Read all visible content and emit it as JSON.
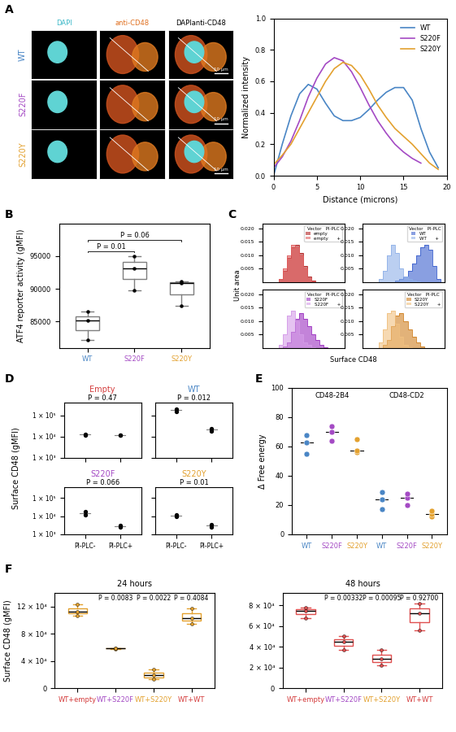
{
  "panel_labels": [
    "A",
    "B",
    "C",
    "D",
    "E",
    "F"
  ],
  "images": {
    "columns": [
      "DAPI",
      "anti-CD48",
      "DAPIanti-CD48"
    ],
    "rows": [
      {
        "name": "WT",
        "color": "#4a86c5"
      },
      {
        "name": "S220F",
        "color": "#a44ac4"
      },
      {
        "name": "S220Y",
        "color": "#e3a12f"
      }
    ],
    "scale_bar": "10 μm"
  },
  "group_labels": {
    "C": {
      "x_label": "Surface CD48",
      "y_label": "Unit area"
    },
    "D": {
      "y_label": "Surface CD48 (gMFI)"
    }
  },
  "chart_data": [
    {
      "type": "line",
      "x": [
        0,
        1,
        2,
        3,
        4,
        5,
        6,
        7,
        8,
        9,
        10,
        11,
        12,
        13,
        14,
        15,
        16,
        17,
        18,
        19
      ],
      "series": [
        {
          "name": "WT",
          "color": "#4a86c5",
          "values": [
            0.0,
            0.2,
            0.38,
            0.52,
            0.58,
            0.55,
            0.46,
            0.38,
            0.35,
            0.35,
            0.37,
            0.42,
            0.48,
            0.53,
            0.56,
            0.56,
            0.48,
            0.3,
            0.15,
            0.05
          ]
        },
        {
          "name": "S220F",
          "color": "#a44ac4",
          "values": [
            0.05,
            0.12,
            0.22,
            0.35,
            0.5,
            0.62,
            0.71,
            0.75,
            0.73,
            0.66,
            0.56,
            0.45,
            0.35,
            0.27,
            0.2,
            0.15,
            0.11,
            0.08,
            null,
            null
          ]
        },
        {
          "name": "S220Y",
          "color": "#e3a12f",
          "values": [
            0.07,
            0.13,
            0.2,
            0.3,
            0.4,
            0.5,
            0.6,
            0.68,
            0.72,
            0.7,
            0.64,
            0.55,
            0.45,
            0.37,
            0.3,
            0.25,
            0.2,
            0.14,
            0.08,
            0.04
          ]
        }
      ],
      "xlim": [
        0,
        20
      ],
      "xticks": [
        0,
        5,
        10,
        15,
        20
      ],
      "ylim": [
        0.0,
        1.0
      ],
      "yticks": [
        0.0,
        0.2,
        0.4,
        0.6,
        0.8,
        1.0
      ],
      "x_label": "Distance (microns)",
      "y_label": "Normalized intensity",
      "legend": "upper right"
    },
    {
      "type": "box",
      "categories": [
        "WT",
        "S220F",
        "S220Y"
      ],
      "colors": [
        "#4a86c5",
        "#a44ac4",
        "#e3a12f"
      ],
      "color": "#7f7f7f",
      "values": [
        [
          82200,
          85100,
          86500
        ],
        [
          89800,
          93100,
          95000
        ],
        [
          87400,
          90900,
          91100
        ]
      ],
      "ylim": [
        81000,
        100000
      ],
      "yticks": [
        85000,
        90000,
        95000
      ],
      "y_label": "ATF4 reporter activity (gMFI)",
      "annotations": [
        {
          "text": "P = 0.01",
          "pair": [
            0,
            1
          ]
        },
        {
          "text": "P = 0.06",
          "pair": [
            0,
            2
          ]
        }
      ]
    },
    {
      "type": "histogram",
      "bins": [
        0,
        1,
        2,
        3,
        4,
        5,
        6,
        7,
        8,
        9,
        10,
        11,
        12,
        13,
        14,
        15,
        16,
        17,
        18,
        19,
        20
      ],
      "legend_columns": [
        "Vector",
        "PI-PLC"
      ],
      "legend": "upper right",
      "series": [
        {
          "name": "empty",
          "treatment": null,
          "color": "#b22222",
          "values": [
            0,
            0,
            0,
            0,
            0.001,
            0.004,
            0.009,
            0.013,
            0.014,
            0.011,
            0.006,
            0.002,
            0.0005,
            0,
            0,
            0,
            0,
            0,
            0,
            0
          ]
        },
        {
          "name": "empty",
          "treatment": "+",
          "color": "#e06060",
          "values": [
            0,
            0,
            0,
            0,
            0.001,
            0.005,
            0.01,
            0.014,
            0.013,
            0.01,
            0.005,
            0.0015,
            0.0003,
            0,
            0,
            0,
            0,
            0,
            0,
            0
          ]
        }
      ],
      "xlim": [
        0,
        20
      ],
      "xticks": [],
      "ylim": [
        0,
        0.022
      ],
      "yticks": [
        {
          "value": 0.005,
          "label": "0.005"
        },
        {
          "value": 0.01,
          "label": "0.010"
        },
        {
          "value": 0.015,
          "label": "0.015"
        },
        {
          "value": 0.02,
          "label": "0.020"
        }
      ],
      "tick_labels": "y"
    },
    {
      "type": "histogram",
      "bins": [
        0,
        1,
        2,
        3,
        4,
        5,
        6,
        7,
        8,
        9,
        10,
        11,
        12,
        13,
        14,
        15,
        16,
        17,
        18,
        19,
        20
      ],
      "legend_columns": [
        "Vector",
        "PI-PLC"
      ],
      "legend": "upper right",
      "series": [
        {
          "name": "WT",
          "treatment": null,
          "color": "#3a5fcd",
          "values": [
            0,
            0,
            0,
            0,
            0,
            0,
            0,
            0,
            0.0005,
            0.001,
            0.002,
            0.004,
            0.007,
            0.01,
            0.013,
            0.014,
            0.012,
            0.006,
            0.001,
            0
          ]
        },
        {
          "name": "WT",
          "treatment": "+",
          "color": "#8fb0e8",
          "values": [
            0,
            0,
            0,
            0,
            0.001,
            0.004,
            0.01,
            0.014,
            0.011,
            0.005,
            0.002,
            0.001,
            0.0005,
            0.0002,
            0,
            0,
            0,
            0,
            0,
            0
          ]
        }
      ],
      "xlim": [
        0,
        20
      ],
      "xticks": [],
      "ylim": [
        0,
        0.022
      ],
      "yticks": [
        {
          "value": 0.005,
          "label": "0.005"
        },
        {
          "value": 0.01,
          "label": "0.010"
        },
        {
          "value": 0.015,
          "label": "0.015"
        },
        {
          "value": 0.02,
          "label": "0.020"
        }
      ],
      "tick_labels": "y"
    },
    {
      "type": "histogram",
      "bins": [
        0,
        1,
        2,
        3,
        4,
        5,
        6,
        7,
        8,
        9,
        10,
        11,
        12,
        13,
        14,
        15,
        16,
        17,
        18,
        19,
        20
      ],
      "legend_columns": [
        "Vector",
        "PI-PLC"
      ],
      "legend": "upper right",
      "series": [
        {
          "name": "S220F",
          "treatment": null,
          "color": "#9b30c0",
          "values": [
            0,
            0,
            0,
            0,
            0,
            0.0005,
            0.002,
            0.006,
            0.011,
            0.013,
            0.011,
            0.008,
            0.005,
            0.003,
            0.001,
            0.0003,
            0,
            0,
            0,
            0
          ]
        },
        {
          "name": "S220F",
          "treatment": "+",
          "color": "#d49be8",
          "values": [
            0,
            0,
            0,
            0,
            0.001,
            0.005,
            0.012,
            0.014,
            0.01,
            0.005,
            0.002,
            0.001,
            0.0003,
            0,
            0,
            0,
            0,
            0,
            0,
            0
          ]
        }
      ],
      "xlim": [
        0,
        20
      ],
      "xticks": [],
      "ylim": [
        0,
        0.022
      ],
      "yticks": [
        {
          "value": 0.005,
          "label": "0.005"
        },
        {
          "value": 0.01,
          "label": "0.010"
        },
        {
          "value": 0.015,
          "label": "0.015"
        },
        {
          "value": 0.02,
          "label": "0.020"
        }
      ],
      "tick_labels": "y"
    },
    {
      "type": "histogram",
      "bins": [
        0,
        1,
        2,
        3,
        4,
        5,
        6,
        7,
        8,
        9,
        10,
        11,
        12,
        13,
        14,
        15,
        16,
        17,
        18,
        19,
        20
      ],
      "legend_columns": [
        "Vector",
        "PI-PLC"
      ],
      "legend": "upper right",
      "series": [
        {
          "name": "S220Y",
          "treatment": null,
          "color": "#d08020",
          "values": [
            0,
            0,
            0,
            0,
            0,
            0.001,
            0.003,
            0.008,
            0.012,
            0.013,
            0.01,
            0.007,
            0.004,
            0.002,
            0.0005,
            0,
            0,
            0,
            0,
            0
          ]
        },
        {
          "name": "S220Y",
          "treatment": "+",
          "color": "#f0c080",
          "values": [
            0,
            0,
            0,
            0,
            0.002,
            0.007,
            0.013,
            0.014,
            0.009,
            0.004,
            0.001,
            0.0003,
            0,
            0,
            0,
            0,
            0,
            0,
            0,
            0
          ]
        }
      ],
      "xlim": [
        0,
        20
      ],
      "xticks": [],
      "ylim": [
        0,
        0.022
      ],
      "yticks": [
        {
          "value": 0.005,
          "label": "0.005"
        },
        {
          "value": 0.01,
          "label": "0.010"
        },
        {
          "value": 0.015,
          "label": "0.015"
        },
        {
          "value": 0.02,
          "label": "0.020"
        }
      ],
      "tick_labels": "y"
    },
    {
      "type": "scatter",
      "log": "y",
      "title": "Empty",
      "color": "#d43c3c",
      "subtitle": "P = 0.47",
      "categories": [
        "PI-PLC-",
        "PI-PLC+"
      ],
      "values": [
        [
          12000,
          12500
        ],
        [
          11500,
          12000
        ]
      ],
      "ylim": [
        1000,
        400000
      ],
      "yticks": [
        {
          "value": 1000,
          "label": "1 × 10³"
        },
        {
          "value": 10000,
          "label": "1 × 10⁴"
        },
        {
          "value": 100000,
          "label": "1 × 10⁵"
        }
      ],
      "tick_labels": "y"
    },
    {
      "type": "scatter",
      "log": "y",
      "title": "WT",
      "color": "#4a86c5",
      "subtitle": "P = 0.012",
      "categories": [
        "PI-PLC-",
        "PI-PLC+"
      ],
      "values": [
        [
          150000,
          200000
        ],
        [
          18000,
          24000
        ]
      ],
      "ylim": [
        1000,
        400000
      ],
      "yticks": [
        {
          "value": 1000,
          "label": "1 × 10³"
        },
        {
          "value": 10000,
          "label": "1 × 10⁴"
        },
        {
          "value": 100000,
          "label": "1 × 10⁵"
        }
      ],
      "tick_labels": false
    },
    {
      "type": "scatter",
      "log": "y",
      "title": "S220F",
      "color": "#a44ac4",
      "subtitle": "P = 0.066",
      "categories": [
        "PI-PLC-",
        "PI-PLC+"
      ],
      "values": [
        [
          12000,
          17000
        ],
        [
          2500,
          3200
        ]
      ],
      "ylim": [
        1000,
        400000
      ],
      "yticks": [
        {
          "value": 1000,
          "label": "1 × 10³"
        },
        {
          "value": 10000,
          "label": "1 × 10⁴"
        },
        {
          "value": 100000,
          "label": "1 × 10⁵"
        }
      ]
    },
    {
      "type": "scatter",
      "log": "y",
      "title": "S220Y",
      "color": "#e3a12f",
      "subtitle": "P = 0.01",
      "categories": [
        "PI-PLC-",
        "PI-PLC+"
      ],
      "values": [
        [
          10000,
          12000
        ],
        [
          2500,
          3500
        ]
      ],
      "ylim": [
        1000,
        400000
      ],
      "yticks": [
        {
          "value": 1000,
          "label": "1 × 10³"
        },
        {
          "value": 10000,
          "label": "1 × 10⁴"
        },
        {
          "value": 100000,
          "label": "1 × 10⁵"
        }
      ],
      "tick_labels": "x"
    },
    {
      "type": "scatter",
      "y_label": "Δ Free energy",
      "groups": [
        {
          "name": "CD48-2B4",
          "categories": [
            "WT",
            "S220F",
            "S220Y"
          ],
          "colors": [
            "#4a86c5",
            "#a44ac4",
            "#e3a12f"
          ],
          "values": [
            [
              55,
              63,
              68
            ],
            [
              64,
              70,
              74
            ],
            [
              56,
              57,
              65
            ]
          ]
        },
        {
          "name": "CD48-CD2",
          "categories": [
            "WT",
            "S220F",
            "S220Y"
          ],
          "colors": [
            "#4a86c5",
            "#a44ac4",
            "#e3a12f"
          ],
          "values": [
            [
              17,
              24,
              29
            ],
            [
              20,
              25,
              28
            ],
            [
              12,
              14,
              16
            ]
          ]
        }
      ],
      "ylim": [
        0,
        100
      ],
      "yticks": [
        0,
        20,
        40,
        60,
        80,
        100
      ]
    },
    {
      "type": "box",
      "title": "24 hours",
      "categories": [
        "WT+empty",
        "WT+S220F",
        "WT+S220Y",
        "WT+WT"
      ],
      "colors": [
        "#d43c3c",
        "#a44ac4",
        "#e3a12f",
        "#d43c3c"
      ],
      "color": "#e3a12f",
      "values": [
        [
          107000,
          112000,
          123000
        ],
        [
          58000,
          59000,
          58500
        ],
        [
          13000,
          19000,
          27000
        ],
        [
          95000,
          103000,
          117000
        ]
      ],
      "ylim": [
        0,
        140000
      ],
      "yticks": [
        0,
        {
          "value": 40000,
          "label": "4 × 10⁴"
        },
        {
          "value": 80000,
          "label": "8 × 10⁴"
        },
        {
          "value": 120000,
          "label": "12 × 10⁴"
        }
      ],
      "y_label": "Surface CD48 (gMFI)",
      "annotations": [
        {
          "text": "P = 0.0083",
          "category": 1
        },
        {
          "text": "P = 0.0022",
          "category": 2
        },
        {
          "text": "P = 0.4084",
          "category": 3
        }
      ]
    },
    {
      "type": "box",
      "title": "48 hours",
      "categories": [
        "WT+empty",
        "WT+S220F",
        "WT+S220Y",
        "WT+WT"
      ],
      "colors": [
        "#d43c3c",
        "#a44ac4",
        "#e3a12f",
        "#d43c3c"
      ],
      "color": "#e05050",
      "values": [
        [
          68000,
          75000,
          78000
        ],
        [
          37000,
          45000,
          50000
        ],
        [
          22000,
          28000,
          37000
        ],
        [
          56000,
          72000,
          82000
        ]
      ],
      "ylim": [
        0,
        92000
      ],
      "yticks": [
        0,
        {
          "value": 20000,
          "label": "2 × 10⁴"
        },
        {
          "value": 40000,
          "label": "4 × 10⁴"
        },
        {
          "value": 60000,
          "label": "6 × 10⁴"
        },
        {
          "value": 80000,
          "label": "8 × 10⁴"
        }
      ],
      "annotations": [
        {
          "text": "P = 0.00332",
          "category": 1
        },
        {
          "text": "P = 0.00095",
          "category": 2
        },
        {
          "text": "P = 0.92700",
          "category": 3
        }
      ]
    }
  ]
}
